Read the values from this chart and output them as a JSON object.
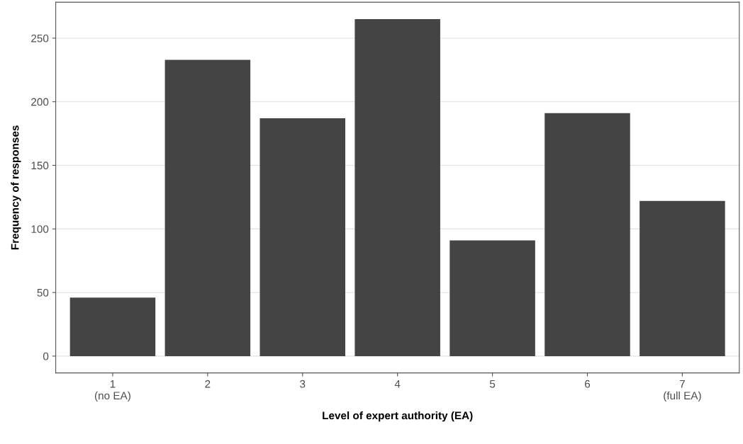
{
  "chart_data": {
    "type": "bar",
    "xlabel": "Level of expert authority (EA)",
    "ylabel": "Frequency of responses",
    "categories": [
      "1\n(no EA)",
      "2",
      "3",
      "4",
      "5",
      "6",
      "7\n(full EA)"
    ],
    "values": [
      46,
      233,
      187,
      265,
      91,
      191,
      122
    ],
    "color": "#444444",
    "ylim": [
      -13.25,
      278.25
    ],
    "yticks": [
      0,
      50,
      100,
      150,
      200,
      250
    ],
    "grid": "y"
  }
}
